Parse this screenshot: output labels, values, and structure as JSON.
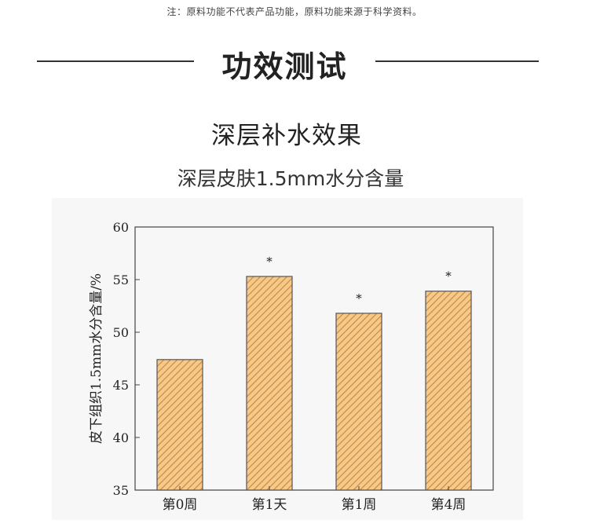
{
  "header": {
    "note": "注：原料功能不代表产品功能，原料功能来源于科学资料。",
    "section_title": "功效测试"
  },
  "main": {
    "subtitle": "深层补水效果",
    "chart_caption": "深层皮肤1.5mm水分含量"
  },
  "chart_data": {
    "type": "bar",
    "categories": [
      "第0周",
      "第1天",
      "第1周",
      "第4周"
    ],
    "values": [
      47.4,
      55.3,
      51.8,
      53.9
    ],
    "significance": [
      "",
      "*",
      "*",
      "*"
    ],
    "ylabel": "皮下组织1.5mm水分含量/%",
    "xlabel": "",
    "ylim": [
      35,
      60
    ],
    "yticks": [
      35,
      40,
      45,
      50,
      55,
      60
    ],
    "bar_fill": "#f5c98a",
    "bar_hatch": "#c8853c",
    "bar_stroke": "#555555",
    "grid": false
  }
}
